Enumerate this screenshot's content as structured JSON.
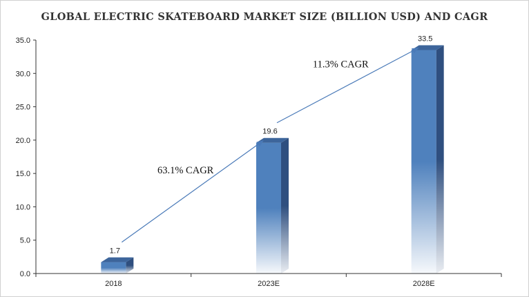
{
  "chart_data": {
    "type": "bar",
    "title": "GLOBAL ELECTRIC SKATEBOARD MARKET SIZE (BILLION USD) AND CAGR",
    "categories": [
      "2018",
      "2023E",
      "2028E"
    ],
    "values": [
      1.7,
      19.6,
      33.5
    ],
    "data_labels": [
      "1.7",
      "19.6",
      "33.5"
    ],
    "ylim": [
      0,
      35
    ],
    "yticks": [
      "0.0",
      "5.0",
      "10.0",
      "15.0",
      "20.0",
      "25.0",
      "30.0",
      "35.0"
    ],
    "grid": false,
    "legend": "none",
    "bar_color": "#4f81bd",
    "bar_side_color": "#2f4f7f",
    "arrow_color": "#4a7ab8",
    "annotations": [
      {
        "text": "63.1% CAGR",
        "from": "2018",
        "to": "2023E"
      },
      {
        "text": "11.3% CAGR",
        "from": "2023E",
        "to": "2028E"
      }
    ]
  }
}
